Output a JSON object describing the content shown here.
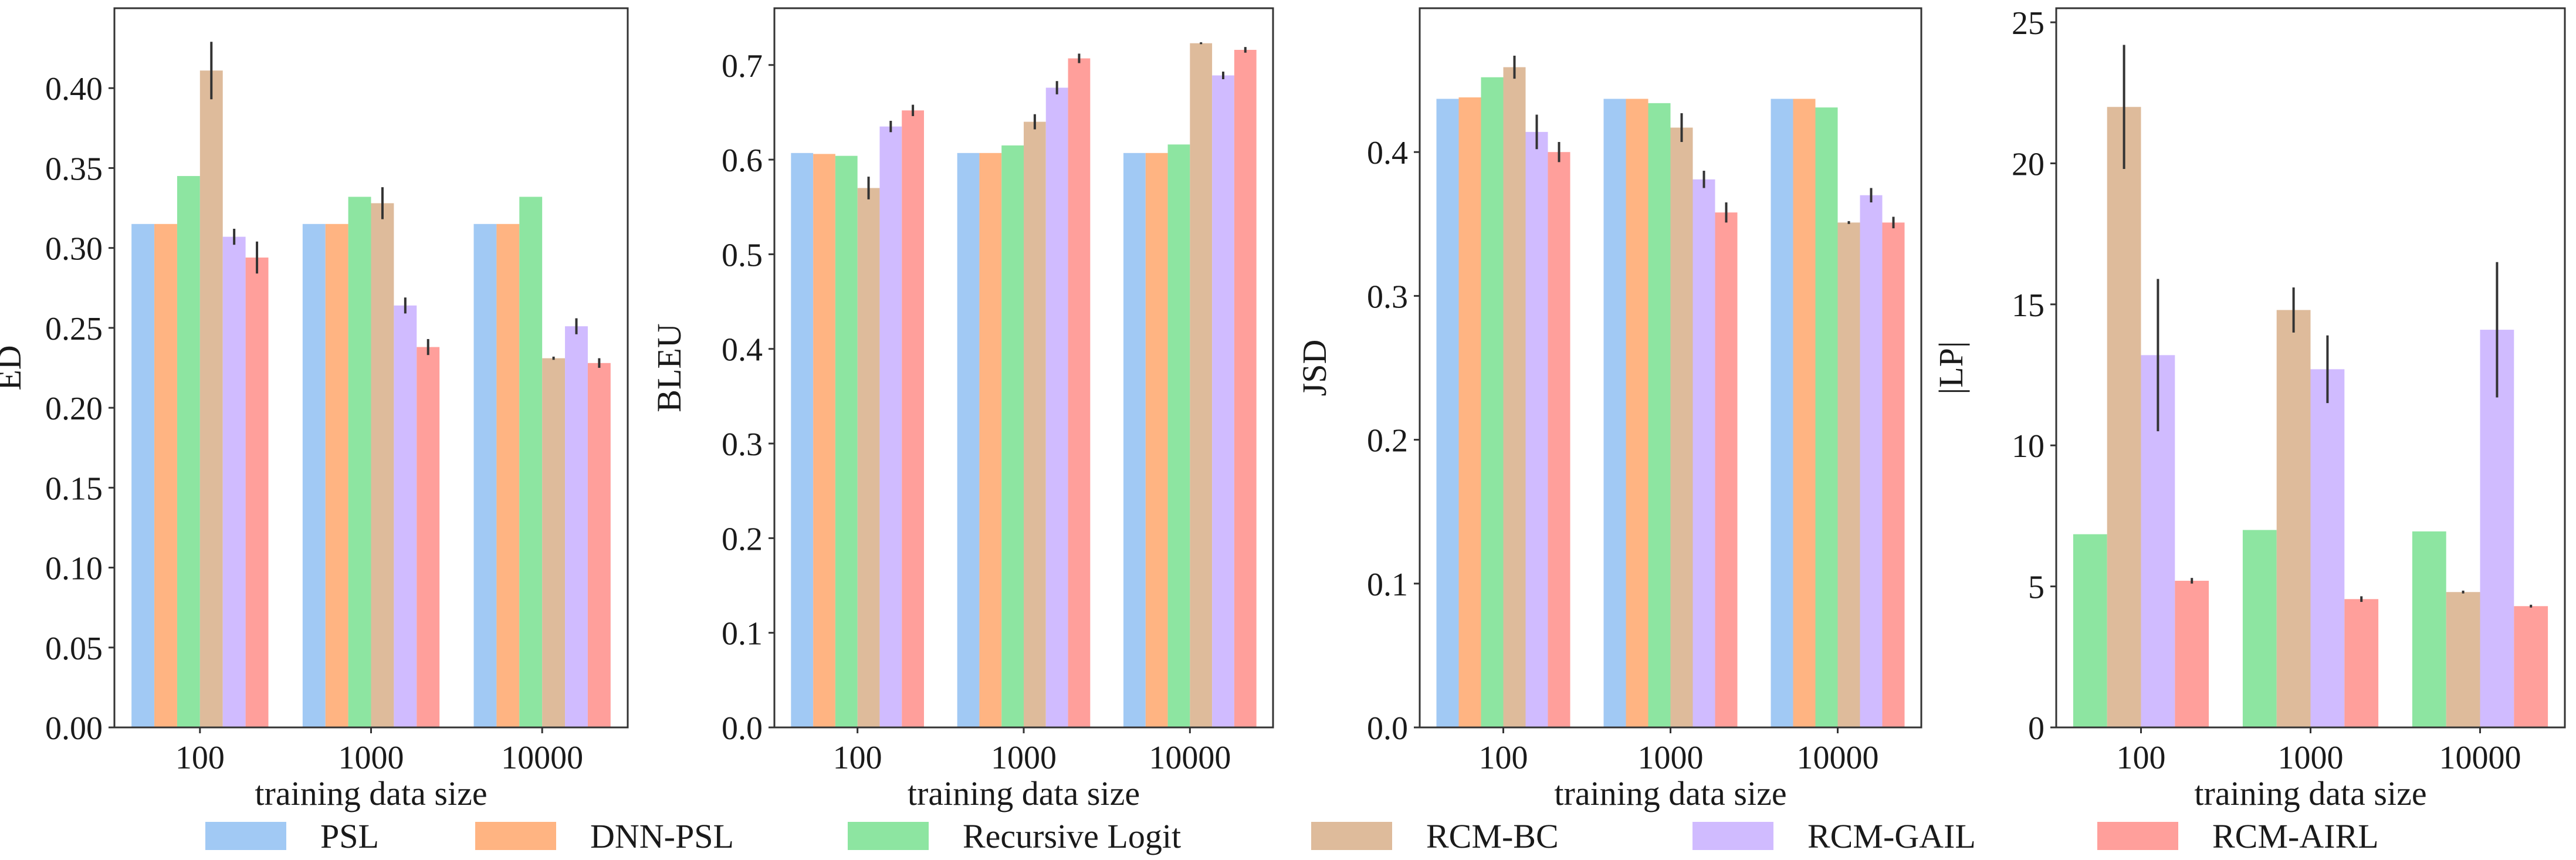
{
  "colors": {
    "PSL": "#a1c9f4",
    "DNN-PSL": "#ffb482",
    "Recursive Logit": "#8de5a1",
    "RCM-BC": "#debb9b",
    "RCM-GAIL": "#d0bbff",
    "RCM-AIRL": "#ff9f9b"
  },
  "legend": [
    "PSL",
    "DNN-PSL",
    "Recursive Logit",
    "RCM-BC",
    "RCM-GAIL",
    "RCM-AIRL"
  ],
  "chart_data": [
    {
      "type": "bar",
      "title": "",
      "xlabel": "training data size",
      "ylabel": "ED",
      "categories": [
        "100",
        "1000",
        "10000"
      ],
      "ylim": [
        0,
        0.45
      ],
      "yticks": [
        "0.00",
        "0.05",
        "0.10",
        "0.15",
        "0.20",
        "0.25",
        "0.30",
        "0.35",
        "0.40"
      ],
      "ytick_values": [
        0,
        0.05,
        0.1,
        0.15,
        0.2,
        0.25,
        0.3,
        0.35,
        0.4
      ],
      "series": [
        {
          "name": "PSL",
          "values": [
            0.315,
            0.315,
            0.315
          ],
          "errors": [
            0,
            0,
            0
          ]
        },
        {
          "name": "DNN-PSL",
          "values": [
            0.315,
            0.315,
            0.315
          ],
          "errors": [
            0,
            0,
            0
          ]
        },
        {
          "name": "Recursive Logit",
          "values": [
            0.345,
            0.332,
            0.332
          ],
          "errors": [
            0,
            0,
            0
          ]
        },
        {
          "name": "RCM-BC",
          "values": [
            0.411,
            0.328,
            0.231
          ],
          "errors": [
            0.018,
            0.01,
            0.001
          ]
        },
        {
          "name": "RCM-GAIL",
          "values": [
            0.307,
            0.264,
            0.251
          ],
          "errors": [
            0.005,
            0.005,
            0.005
          ]
        },
        {
          "name": "RCM-AIRL",
          "values": [
            0.294,
            0.238,
            0.228
          ],
          "errors": [
            0.01,
            0.005,
            0.003
          ]
        }
      ]
    },
    {
      "type": "bar",
      "title": "",
      "xlabel": "training data size",
      "ylabel": "BLEU",
      "categories": [
        "100",
        "1000",
        "10000"
      ],
      "ylim": [
        0,
        0.76
      ],
      "yticks": [
        "0.0",
        "0.1",
        "0.2",
        "0.3",
        "0.4",
        "0.5",
        "0.6",
        "0.7"
      ],
      "ytick_values": [
        0,
        0.1,
        0.2,
        0.3,
        0.4,
        0.5,
        0.6,
        0.7
      ],
      "series": [
        {
          "name": "PSL",
          "values": [
            0.607,
            0.607,
            0.607
          ],
          "errors": [
            0,
            0,
            0
          ]
        },
        {
          "name": "DNN-PSL",
          "values": [
            0.606,
            0.607,
            0.607
          ],
          "errors": [
            0,
            0,
            0
          ]
        },
        {
          "name": "Recursive Logit",
          "values": [
            0.604,
            0.615,
            0.616
          ],
          "errors": [
            0,
            0,
            0
          ]
        },
        {
          "name": "RCM-BC",
          "values": [
            0.57,
            0.64,
            0.723
          ],
          "errors": [
            0.012,
            0.008,
            0.001
          ]
        },
        {
          "name": "RCM-GAIL",
          "values": [
            0.635,
            0.676,
            0.689
          ],
          "errors": [
            0.006,
            0.007,
            0.004
          ]
        },
        {
          "name": "RCM-AIRL",
          "values": [
            0.652,
            0.707,
            0.716
          ],
          "errors": [
            0.006,
            0.005,
            0.003
          ]
        }
      ]
    },
    {
      "type": "bar",
      "title": "",
      "xlabel": "training data size",
      "ylabel": "JSD",
      "categories": [
        "100",
        "1000",
        "10000"
      ],
      "ylim": [
        0,
        0.5
      ],
      "yticks": [
        "0.0",
        "0.1",
        "0.2",
        "0.3",
        "0.4"
      ],
      "ytick_values": [
        0,
        0.1,
        0.2,
        0.3,
        0.4
      ],
      "series": [
        {
          "name": "PSL",
          "values": [
            0.437,
            0.437,
            0.437
          ],
          "errors": [
            0,
            0,
            0
          ]
        },
        {
          "name": "DNN-PSL",
          "values": [
            0.438,
            0.437,
            0.437
          ],
          "errors": [
            0,
            0,
            0
          ]
        },
        {
          "name": "Recursive Logit",
          "values": [
            0.452,
            0.434,
            0.431
          ],
          "errors": [
            0,
            0,
            0
          ]
        },
        {
          "name": "RCM-BC",
          "values": [
            0.459,
            0.417,
            0.351
          ],
          "errors": [
            0.008,
            0.01,
            0.001
          ]
        },
        {
          "name": "RCM-GAIL",
          "values": [
            0.414,
            0.381,
            0.37
          ],
          "errors": [
            0.012,
            0.006,
            0.005
          ]
        },
        {
          "name": "RCM-AIRL",
          "values": [
            0.4,
            0.358,
            0.351
          ],
          "errors": [
            0.007,
            0.007,
            0.004
          ]
        }
      ]
    },
    {
      "type": "bar",
      "title": "",
      "xlabel": "training data size",
      "ylabel": "|LP|",
      "categories": [
        "100",
        "1000",
        "10000"
      ],
      "ylim": [
        0,
        25.5
      ],
      "yticks": [
        "0",
        "5",
        "10",
        "15",
        "20",
        "25"
      ],
      "ytick_values": [
        0,
        5,
        10,
        15,
        20,
        25
      ],
      "series": [
        {
          "name": "Recursive Logit",
          "values": [
            6.85,
            7.0,
            6.95
          ],
          "errors": [
            0,
            0,
            0
          ]
        },
        {
          "name": "RCM-BC",
          "values": [
            22.0,
            14.8,
            4.8
          ],
          "errors": [
            2.2,
            0.8,
            0.05
          ]
        },
        {
          "name": "RCM-GAIL",
          "values": [
            13.2,
            12.7,
            14.1
          ],
          "errors": [
            2.7,
            1.2,
            2.4
          ]
        },
        {
          "name": "RCM-AIRL",
          "values": [
            5.2,
            4.55,
            4.3
          ],
          "errors": [
            0.1,
            0.1,
            0.05
          ]
        }
      ]
    }
  ]
}
